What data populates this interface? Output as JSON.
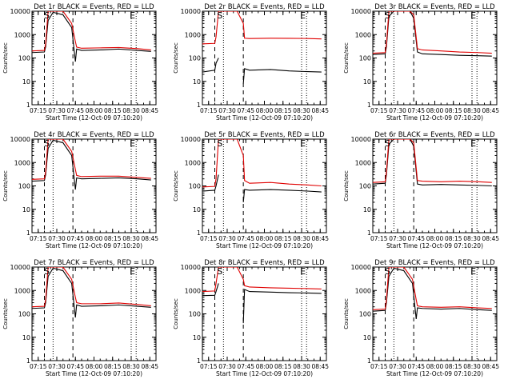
{
  "chart_data": [
    {
      "type": "line",
      "title": "Det 1r BLACK = Events, RED = LLD",
      "xlabel": "Start Time (12-Oct-09 07:10:20)",
      "ylabel": "Counts/sec",
      "xticks": [
        "07:15",
        "07:30",
        "07:45",
        "08:00",
        "08:15",
        "08:30",
        "08:45"
      ],
      "yticks": [
        "1",
        "10",
        "100",
        "1000",
        "10000"
      ],
      "ylim": [
        1,
        10000
      ],
      "yscale": "log",
      "markers": [
        {
          "label": "S",
          "time": "07:22"
        },
        {
          "label": "E",
          "time": "08:31"
        }
      ],
      "series": [
        {
          "color": "#000000",
          "x": [
            "07:10",
            "07:20",
            "07:21",
            "07:23",
            "07:27",
            "07:35",
            "07:42",
            "07:45",
            "07:46",
            "07:50",
            "08:05",
            "08:20",
            "08:35",
            "08:46"
          ],
          "y": [
            170,
            180,
            300,
            4000,
            9000,
            7000,
            2000,
            70,
            240,
            210,
            220,
            240,
            210,
            190
          ]
        },
        {
          "color": "#e00000",
          "x": [
            "07:10",
            "07:20",
            "07:21",
            "07:23",
            "07:27",
            "07:35",
            "07:42",
            "07:45",
            "07:46",
            "07:50",
            "08:05",
            "08:20",
            "08:35",
            "08:46"
          ],
          "y": [
            200,
            210,
            400,
            10000,
            10000,
            10000,
            3000,
            500,
            290,
            260,
            270,
            280,
            250,
            220
          ]
        }
      ]
    },
    {
      "type": "line",
      "title": "Det 2r BLACK = Events, RED = LLD",
      "xlabel": "Start Time (12-Oct-09 07:10:20)",
      "ylabel": "Counts/sec",
      "xticks": [
        "07:15",
        "07:30",
        "07:45",
        "08:00",
        "08:15",
        "08:30",
        "08:45"
      ],
      "yticks": [
        "1",
        "10",
        "100",
        "1000",
        "10000"
      ],
      "ylim": [
        1,
        10000
      ],
      "yscale": "log",
      "markers": [
        {
          "label": "S",
          "time": "07:24"
        },
        {
          "label": "E",
          "time": "08:31"
        }
      ],
      "series": [
        {
          "color": "#000000",
          "x": [
            "07:10",
            "07:20",
            "07:21",
            "07:23",
            "07:25",
            "07:38",
            "07:43",
            "07:44",
            "07:48",
            "08:05",
            "08:20",
            "08:35",
            "08:46"
          ],
          "y": [
            25,
            30,
            60,
            100,
            null,
            null,
            8,
            35,
            30,
            32,
            28,
            26,
            25
          ]
        },
        {
          "color": "#e00000",
          "x": [
            "07:10",
            "07:20",
            "07:21",
            "07:23",
            "07:25",
            "07:38",
            "07:43",
            "07:44",
            "07:48",
            "08:05",
            "08:20",
            "08:35",
            "08:46"
          ],
          "y": [
            400,
            420,
            800,
            10000,
            10000,
            10000,
            3000,
            700,
            680,
            700,
            690,
            680,
            650
          ]
        }
      ]
    },
    {
      "type": "line",
      "title": "Det 3r BLACK = Events, RED = LLD",
      "xlabel": "Start Time (12-Oct-09 07:10:20)",
      "ylabel": "Counts/sec",
      "xticks": [
        "07:15",
        "07:30",
        "07:45",
        "08:00",
        "08:15",
        "08:30",
        "08:45"
      ],
      "yticks": [
        "1",
        "10",
        "100",
        "1000",
        "10000"
      ],
      "ylim": [
        1,
        10000
      ],
      "yscale": "log",
      "markers": [
        {
          "label": "S",
          "time": "07:22"
        },
        {
          "label": "E",
          "time": "08:31"
        }
      ],
      "series": [
        {
          "color": "#000000",
          "x": [
            "07:10",
            "07:20",
            "07:21",
            "07:23",
            "07:27",
            "07:40",
            "07:43",
            "07:46",
            "07:50",
            "08:05",
            "08:20",
            "08:35",
            "08:46"
          ],
          "y": [
            140,
            150,
            300,
            6000,
            10000,
            10000,
            5000,
            180,
            150,
            140,
            130,
            125,
            120
          ]
        },
        {
          "color": "#e00000",
          "x": [
            "07:10",
            "07:20",
            "07:21",
            "07:23",
            "07:27",
            "07:40",
            "07:43",
            "07:46",
            "07:50",
            "08:05",
            "08:20",
            "08:35",
            "08:46"
          ],
          "y": [
            160,
            170,
            400,
            10000,
            10000,
            10000,
            7000,
            250,
            220,
            200,
            180,
            170,
            160
          ]
        }
      ]
    },
    {
      "type": "line",
      "title": "Det 4r BLACK = Events, RED = LLD",
      "xlabel": "Start Time (12-Oct-09 07:10:20)",
      "ylabel": "Counts/sec",
      "xticks": [
        "07:15",
        "07:30",
        "07:45",
        "08:00",
        "08:15",
        "08:30",
        "08:45"
      ],
      "yticks": [
        "1",
        "10",
        "100",
        "1000",
        "10000"
      ],
      "ylim": [
        1,
        10000
      ],
      "yscale": "log",
      "markers": [
        {
          "label": "S",
          "time": "07:22"
        },
        {
          "label": "E",
          "time": "08:31"
        }
      ],
      "series": [
        {
          "color": "#000000",
          "x": [
            "07:10",
            "07:20",
            "07:21",
            "07:23",
            "07:27",
            "07:35",
            "07:42",
            "07:45",
            "07:46",
            "07:50",
            "08:05",
            "08:20",
            "08:35",
            "08:46"
          ],
          "y": [
            160,
            170,
            300,
            4000,
            9000,
            7000,
            2000,
            70,
            220,
            200,
            210,
            220,
            200,
            180
          ]
        },
        {
          "color": "#e00000",
          "x": [
            "07:10",
            "07:20",
            "07:21",
            "07:23",
            "07:27",
            "07:35",
            "07:42",
            "07:45",
            "07:46",
            "07:50",
            "08:05",
            "08:20",
            "08:35",
            "08:46"
          ],
          "y": [
            190,
            200,
            400,
            10000,
            10000,
            10000,
            3000,
            500,
            280,
            250,
            260,
            260,
            230,
            210
          ]
        }
      ]
    },
    {
      "type": "line",
      "title": "Det 5r BLACK = Events, RED = LLD",
      "xlabel": "Start Time (12-Oct-09 07:10:20)",
      "ylabel": "Counts/sec",
      "xticks": [
        "07:15",
        "07:30",
        "07:45",
        "08:00",
        "08:15",
        "08:30",
        "08:45"
      ],
      "yticks": [
        "1",
        "10",
        "100",
        "1000",
        "10000"
      ],
      "ylim": [
        1,
        10000
      ],
      "yscale": "log",
      "markers": [
        {
          "label": "S",
          "time": "07:24"
        },
        {
          "label": "E",
          "time": "08:31"
        }
      ],
      "series": [
        {
          "color": "#000000",
          "x": [
            "07:10",
            "07:20",
            "07:21",
            "07:23",
            "07:25",
            "07:38",
            "07:43",
            "07:44",
            "07:48",
            "08:05",
            "08:20",
            "08:35",
            "08:46"
          ],
          "y": [
            60,
            65,
            100,
            300,
            null,
            null,
            20,
            70,
            65,
            70,
            65,
            60,
            55
          ]
        },
        {
          "color": "#e00000",
          "x": [
            "07:10",
            "07:20",
            "07:21",
            "07:23",
            "07:25",
            "07:38",
            "07:43",
            "07:44",
            "07:48",
            "08:05",
            "08:20",
            "08:35",
            "08:46"
          ],
          "y": [
            90,
            95,
            200,
            10000,
            10000,
            10000,
            2000,
            170,
            130,
            140,
            120,
            110,
            100
          ]
        }
      ]
    },
    {
      "type": "line",
      "title": "Det 6r BLACK = Events, RED = LLD",
      "xlabel": "Start Time (12-Oct-09 07:10:20)",
      "ylabel": "Counts/sec",
      "xticks": [
        "07:15",
        "07:30",
        "07:45",
        "08:00",
        "08:15",
        "08:30",
        "08:45"
      ],
      "yticks": [
        "1",
        "10",
        "100",
        "1000",
        "10000"
      ],
      "ylim": [
        1,
        10000
      ],
      "yscale": "log",
      "markers": [
        {
          "label": "S",
          "time": "07:22"
        },
        {
          "label": "E",
          "time": "08:31"
        }
      ],
      "series": [
        {
          "color": "#000000",
          "x": [
            "07:10",
            "07:20",
            "07:21",
            "07:23",
            "07:27",
            "07:40",
            "07:43",
            "07:46",
            "07:50",
            "08:05",
            "08:20",
            "08:35",
            "08:46"
          ],
          "y": [
            120,
            130,
            300,
            6000,
            10000,
            10000,
            5000,
            120,
            110,
            115,
            110,
            105,
            100
          ]
        },
        {
          "color": "#e00000",
          "x": [
            "07:10",
            "07:20",
            "07:21",
            "07:23",
            "07:27",
            "07:40",
            "07:43",
            "07:46",
            "07:50",
            "08:05",
            "08:20",
            "08:35",
            "08:46"
          ],
          "y": [
            140,
            150,
            400,
            10000,
            10000,
            10000,
            7000,
            170,
            160,
            150,
            160,
            150,
            140
          ]
        }
      ]
    },
    {
      "type": "line",
      "title": "Det 7r BLACK = Events, RED = LLD",
      "xlabel": "Start Time (12-Oct-09 07:10:20)",
      "ylabel": "Counts/sec",
      "xticks": [
        "07:15",
        "07:30",
        "07:45",
        "08:00",
        "08:15",
        "08:30",
        "08:45"
      ],
      "yticks": [
        "1",
        "10",
        "100",
        "1000",
        "10000"
      ],
      "ylim": [
        1,
        10000
      ],
      "yscale": "log",
      "markers": [
        {
          "label": "S",
          "time": "07:22"
        },
        {
          "label": "E",
          "time": "08:31"
        }
      ],
      "series": [
        {
          "color": "#000000",
          "x": [
            "07:10",
            "07:20",
            "07:21",
            "07:23",
            "07:27",
            "07:35",
            "07:42",
            "07:45",
            "07:46",
            "07:50",
            "08:05",
            "08:20",
            "08:35",
            "08:46"
          ],
          "y": [
            170,
            180,
            300,
            4000,
            9000,
            7000,
            2000,
            70,
            240,
            210,
            220,
            240,
            210,
            190
          ]
        },
        {
          "color": "#e00000",
          "x": [
            "07:10",
            "07:20",
            "07:21",
            "07:23",
            "07:27",
            "07:35",
            "07:42",
            "07:45",
            "07:46",
            "07:50",
            "08:05",
            "08:20",
            "08:35",
            "08:46"
          ],
          "y": [
            200,
            210,
            400,
            10000,
            10000,
            10000,
            3000,
            500,
            300,
            270,
            270,
            290,
            250,
            220
          ]
        }
      ]
    },
    {
      "type": "line",
      "title": "Det 8r BLACK = Events, RED = LLD",
      "xlabel": "Start Time (12-Oct-09 07:10:20)",
      "ylabel": "Counts/sec",
      "xticks": [
        "07:15",
        "07:30",
        "07:45",
        "08:00",
        "08:15",
        "08:30",
        "08:45"
      ],
      "yticks": [
        "1",
        "10",
        "100",
        "1000",
        "10000"
      ],
      "ylim": [
        1,
        10000
      ],
      "yscale": "log",
      "markers": [
        {
          "label": "S",
          "time": "07:24"
        },
        {
          "label": "E",
          "time": "08:31"
        }
      ],
      "series": [
        {
          "color": "#000000",
          "x": [
            "07:10",
            "07:20",
            "07:21",
            "07:23",
            "07:25",
            "07:38",
            "07:43",
            "07:44",
            "07:48",
            "08:05",
            "08:20",
            "08:35",
            "08:46"
          ],
          "y": [
            600,
            620,
            900,
            2000,
            null,
            null,
            40,
            1100,
            900,
            850,
            800,
            780,
            750
          ]
        },
        {
          "color": "#e00000",
          "x": [
            "07:10",
            "07:20",
            "07:21",
            "07:23",
            "07:25",
            "07:38",
            "07:43",
            "07:44",
            "07:48",
            "08:05",
            "08:20",
            "08:35",
            "08:46"
          ],
          "y": [
            900,
            950,
            2000,
            10000,
            10000,
            10000,
            3000,
            1600,
            1400,
            1300,
            1250,
            1200,
            1150
          ]
        }
      ]
    },
    {
      "type": "line",
      "title": "Det 9r BLACK = Events, RED = LLD",
      "xlabel": "Start Time (12-Oct-09 07:10:20)",
      "ylabel": "Counts/sec",
      "xticks": [
        "07:15",
        "07:30",
        "07:45",
        "08:00",
        "08:15",
        "08:30",
        "08:45"
      ],
      "yticks": [
        "1",
        "10",
        "100",
        "1000",
        "10000"
      ],
      "ylim": [
        1,
        10000
      ],
      "yscale": "log",
      "markers": [
        {
          "label": "S",
          "time": "07:22"
        },
        {
          "label": "E",
          "time": "08:31"
        }
      ],
      "series": [
        {
          "color": "#000000",
          "x": [
            "07:10",
            "07:20",
            "07:21",
            "07:23",
            "07:27",
            "07:35",
            "07:42",
            "07:45",
            "07:46",
            "07:50",
            "08:05",
            "08:20",
            "08:35",
            "08:46"
          ],
          "y": [
            130,
            140,
            300,
            4000,
            9000,
            7000,
            2000,
            60,
            180,
            170,
            160,
            170,
            150,
            140
          ]
        },
        {
          "color": "#e00000",
          "x": [
            "07:10",
            "07:20",
            "07:21",
            "07:23",
            "07:27",
            "07:35",
            "07:42",
            "07:45",
            "07:46",
            "07:50",
            "08:05",
            "08:20",
            "08:35",
            "08:46"
          ],
          "y": [
            150,
            160,
            400,
            10000,
            10000,
            10000,
            3000,
            400,
            220,
            200,
            190,
            200,
            180,
            170
          ]
        }
      ]
    }
  ]
}
